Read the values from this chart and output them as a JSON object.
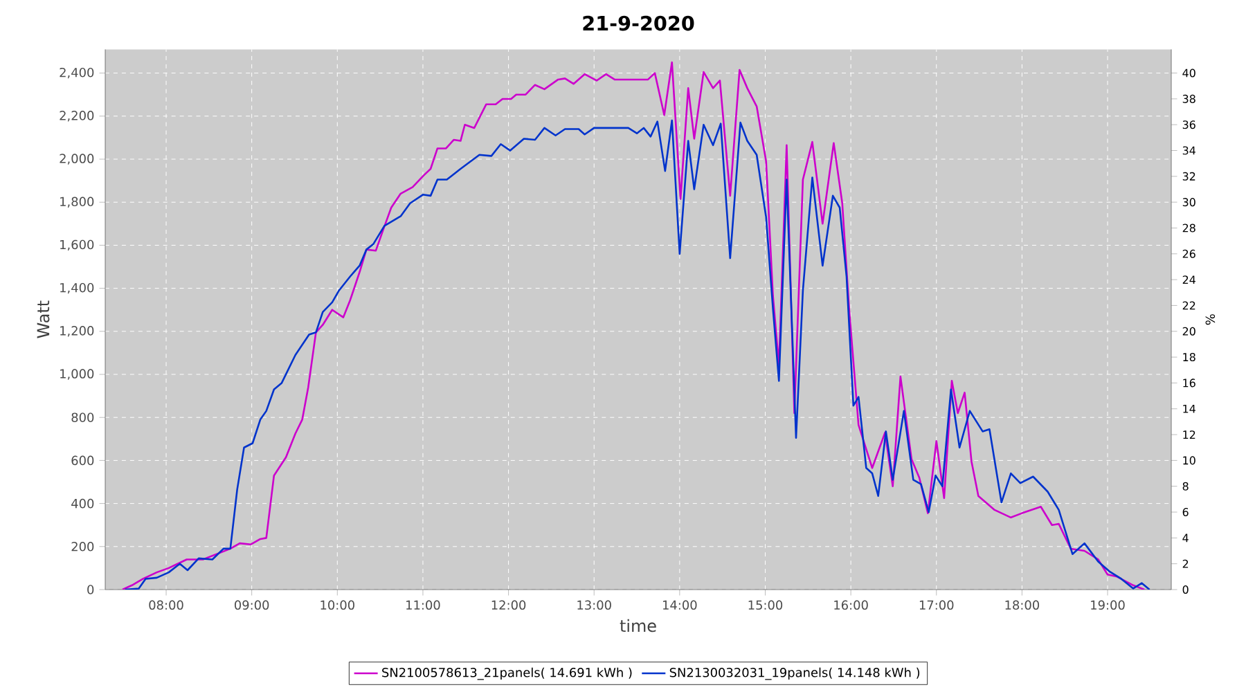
{
  "chart_data": {
    "type": "line",
    "title": "21-9-2020",
    "xlabel": "time",
    "ylabel": "Watt",
    "y2label": "%",
    "xlim": [
      7.288,
      19.744
    ],
    "ylim": [
      0,
      2510
    ],
    "y2lim": [
      0,
      41.83
    ],
    "xticks": [
      {
        "value": 8,
        "label": "08:00"
      },
      {
        "value": 9,
        "label": "09:00"
      },
      {
        "value": 10,
        "label": "10:00"
      },
      {
        "value": 11,
        "label": "11:00"
      },
      {
        "value": 12,
        "label": "12:00"
      },
      {
        "value": 13,
        "label": "13:00"
      },
      {
        "value": 14,
        "label": "14:00"
      },
      {
        "value": 15,
        "label": "15:00"
      },
      {
        "value": 16,
        "label": "16:00"
      },
      {
        "value": 17,
        "label": "17:00"
      },
      {
        "value": 18,
        "label": "18:00"
      },
      {
        "value": 19,
        "label": "19:00"
      }
    ],
    "yticks": [
      0,
      200,
      400,
      600,
      800,
      {
        "value": 1000,
        "label": "1,000"
      },
      {
        "value": 1200,
        "label": "1,200"
      },
      {
        "value": 1400,
        "label": "1,400"
      },
      {
        "value": 1600,
        "label": "1,600"
      },
      {
        "value": 1800,
        "label": "1,800"
      },
      {
        "value": 2000,
        "label": "2,000"
      },
      {
        "value": 2200,
        "label": "2,200"
      },
      {
        "value": 2400,
        "label": "2,400"
      }
    ],
    "y2ticks": [
      0,
      2,
      4,
      6,
      8,
      10,
      12,
      14,
      16,
      18,
      20,
      22,
      24,
      26,
      28,
      30,
      32,
      34,
      36,
      38,
      40
    ],
    "grid": true,
    "legend": "bottom",
    "line_style": "solid",
    "series": [
      {
        "name": "SN2100578613_21panels( 14.691 kWh )",
        "color": "#cc00cc",
        "x": [
          7.49,
          7.6,
          7.73,
          7.89,
          8.03,
          8.24,
          8.43,
          8.59,
          8.75,
          8.86,
          8.99,
          9.1,
          9.17,
          9.26,
          9.4,
          9.51,
          9.59,
          9.66,
          9.75,
          9.83,
          9.94,
          10.07,
          10.15,
          10.26,
          10.34,
          10.45,
          10.53,
          10.63,
          10.74,
          10.88,
          11.01,
          11.09,
          11.17,
          11.27,
          11.36,
          11.44,
          11.49,
          11.6,
          11.74,
          11.85,
          11.93,
          12.03,
          12.09,
          12.2,
          12.31,
          12.42,
          12.58,
          12.66,
          12.76,
          12.89,
          13.03,
          13.14,
          13.24,
          13.34,
          13.63,
          13.71,
          13.82,
          13.91,
          14.01,
          14.1,
          14.17,
          14.28,
          14.39,
          14.47,
          14.59,
          14.7,
          14.79,
          14.9,
          15.01,
          15.09,
          15.16,
          15.25,
          15.34,
          15.44,
          15.55,
          15.67,
          15.8,
          15.9,
          15.98,
          16.09,
          16.25,
          16.4,
          16.49,
          16.58,
          16.71,
          16.8,
          16.9,
          17.0,
          17.09,
          17.18,
          17.25,
          17.33,
          17.41,
          17.49,
          17.68,
          17.87,
          18.0,
          18.22,
          18.35,
          18.43,
          18.57,
          18.73,
          18.89,
          19.0,
          19.11,
          19.3,
          19.43
        ],
        "values": [
          0,
          20,
          50,
          80,
          100,
          140,
          140,
          165,
          190,
          215,
          210,
          235,
          240,
          530,
          615,
          725,
          790,
          940,
          1195,
          1230,
          1300,
          1265,
          1345,
          1475,
          1580,
          1575,
          1665,
          1775,
          1840,
          1870,
          1925,
          1955,
          2050,
          2050,
          2090,
          2085,
          2160,
          2145,
          2255,
          2255,
          2280,
          2280,
          2300,
          2300,
          2345,
          2325,
          2370,
          2375,
          2350,
          2395,
          2365,
          2395,
          2370,
          2370,
          2370,
          2400,
          2205,
          2450,
          1815,
          2330,
          2095,
          2405,
          2330,
          2365,
          1830,
          2415,
          2330,
          2245,
          1990,
          1365,
          1045,
          2065,
          820,
          1905,
          2080,
          1700,
          2075,
          1795,
          1305,
          765,
          565,
          730,
          480,
          990,
          605,
          520,
          355,
          690,
          425,
          970,
          820,
          915,
          595,
          435,
          370,
          335,
          355,
          385,
          300,
          305,
          190,
          180,
          140,
          70,
          60,
          20,
          0
        ]
      },
      {
        "name": "SN2130032031_19panels( 14.148 kWh )",
        "color": "#0033cc",
        "x": [
          7.52,
          7.68,
          7.76,
          7.89,
          8.03,
          8.16,
          8.25,
          8.38,
          8.54,
          8.67,
          8.75,
          8.83,
          8.91,
          9.01,
          9.1,
          9.17,
          9.26,
          9.35,
          9.51,
          9.67,
          9.75,
          9.83,
          9.94,
          10.02,
          10.15,
          10.26,
          10.34,
          10.42,
          10.55,
          10.74,
          10.85,
          11.0,
          11.09,
          11.17,
          11.28,
          11.44,
          11.66,
          11.8,
          11.91,
          12.02,
          12.18,
          12.31,
          12.42,
          12.55,
          12.66,
          12.82,
          12.89,
          13.0,
          13.4,
          13.5,
          13.58,
          13.66,
          13.74,
          13.83,
          13.91,
          14.0,
          14.1,
          14.17,
          14.28,
          14.39,
          14.48,
          14.59,
          14.71,
          14.79,
          14.9,
          15.01,
          15.09,
          15.16,
          15.25,
          15.36,
          15.44,
          15.55,
          15.67,
          15.79,
          15.87,
          15.95,
          16.03,
          16.09,
          16.18,
          16.25,
          16.32,
          16.41,
          16.49,
          16.62,
          16.73,
          16.82,
          16.91,
          16.99,
          17.07,
          17.17,
          17.27,
          17.39,
          17.54,
          17.62,
          17.76,
          17.87,
          17.98,
          18.13,
          18.3,
          18.43,
          18.59,
          18.73,
          18.89,
          19.02,
          19.16,
          19.3,
          19.4,
          19.49
        ],
        "values": [
          0,
          5,
          50,
          55,
          80,
          120,
          90,
          145,
          140,
          190,
          190,
          465,
          660,
          680,
          790,
          830,
          930,
          960,
          1090,
          1185,
          1195,
          1290,
          1335,
          1390,
          1455,
          1505,
          1580,
          1605,
          1690,
          1735,
          1795,
          1835,
          1830,
          1905,
          1905,
          1955,
          2020,
          2015,
          2070,
          2040,
          2095,
          2090,
          2145,
          2110,
          2140,
          2140,
          2115,
          2145,
          2145,
          2120,
          2145,
          2105,
          2175,
          1945,
          2180,
          1560,
          2085,
          1860,
          2160,
          2065,
          2165,
          1540,
          2170,
          2085,
          2020,
          1730,
          1305,
          970,
          1905,
          705,
          1390,
          1915,
          1505,
          1830,
          1775,
          1455,
          855,
          895,
          565,
          540,
          435,
          735,
          510,
          830,
          510,
          490,
          360,
          530,
          480,
          930,
          660,
          830,
          735,
          745,
          405,
          540,
          495,
          525,
          455,
          370,
          165,
          215,
          130,
          85,
          50,
          5,
          30,
          0
        ]
      }
    ]
  }
}
